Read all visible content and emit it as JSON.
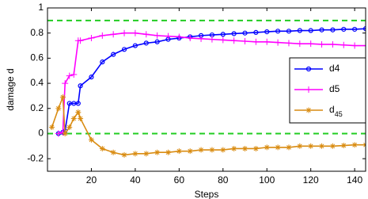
{
  "chart_data": {
    "type": "line",
    "xlabel": "Steps",
    "ylabel": "damage d",
    "x": [
      2,
      5,
      7,
      8,
      10,
      12,
      14,
      15,
      20,
      25,
      30,
      35,
      40,
      45,
      50,
      55,
      60,
      65,
      70,
      75,
      80,
      85,
      90,
      95,
      100,
      105,
      110,
      115,
      120,
      125,
      130,
      135,
      140,
      145
    ],
    "series": [
      {
        "name": "d4",
        "color": "#0000ff",
        "marker": "circle",
        "values": [
          null,
          0.0,
          0.01,
          0.02,
          0.24,
          0.24,
          0.24,
          0.38,
          0.45,
          0.57,
          0.63,
          0.67,
          0.7,
          0.72,
          0.73,
          0.75,
          0.76,
          0.77,
          0.78,
          0.785,
          0.79,
          0.795,
          0.8,
          0.805,
          0.81,
          0.815,
          0.815,
          0.82,
          0.82,
          0.825,
          0.825,
          0.83,
          0.83,
          0.835
        ]
      },
      {
        "name": "d5",
        "color": "#ff00ff",
        "marker": "plus",
        "values": [
          null,
          0.0,
          0.01,
          0.4,
          0.46,
          0.47,
          0.74,
          0.74,
          0.76,
          0.78,
          0.79,
          0.8,
          0.8,
          0.79,
          0.78,
          0.775,
          0.77,
          0.76,
          0.755,
          0.75,
          0.745,
          0.74,
          0.735,
          0.73,
          0.73,
          0.725,
          0.72,
          0.715,
          0.715,
          0.71,
          0.71,
          0.705,
          0.7,
          0.7
        ]
      },
      {
        "name": "d45",
        "color": "#d98c12",
        "marker": "star",
        "values": [
          0.05,
          0.2,
          0.29,
          0.0,
          0.05,
          0.12,
          0.17,
          0.12,
          -0.05,
          -0.12,
          -0.15,
          -0.17,
          -0.16,
          -0.16,
          -0.15,
          -0.15,
          -0.14,
          -0.14,
          -0.13,
          -0.13,
          -0.13,
          -0.12,
          -0.12,
          -0.12,
          -0.11,
          -0.11,
          -0.11,
          -0.1,
          -0.1,
          -0.1,
          -0.1,
          -0.095,
          -0.09,
          -0.09
        ]
      }
    ],
    "hlines": [
      0.9,
      0
    ],
    "hline_color": "#22cc22",
    "xlim": [
      0,
      145
    ],
    "ylim": [
      -0.3,
      1
    ],
    "xticks": [
      20,
      40,
      60,
      80,
      100,
      120,
      140
    ],
    "yticks": [
      -0.2,
      0,
      0.2,
      0.4,
      0.6,
      0.8,
      1
    ],
    "legend": "right"
  }
}
